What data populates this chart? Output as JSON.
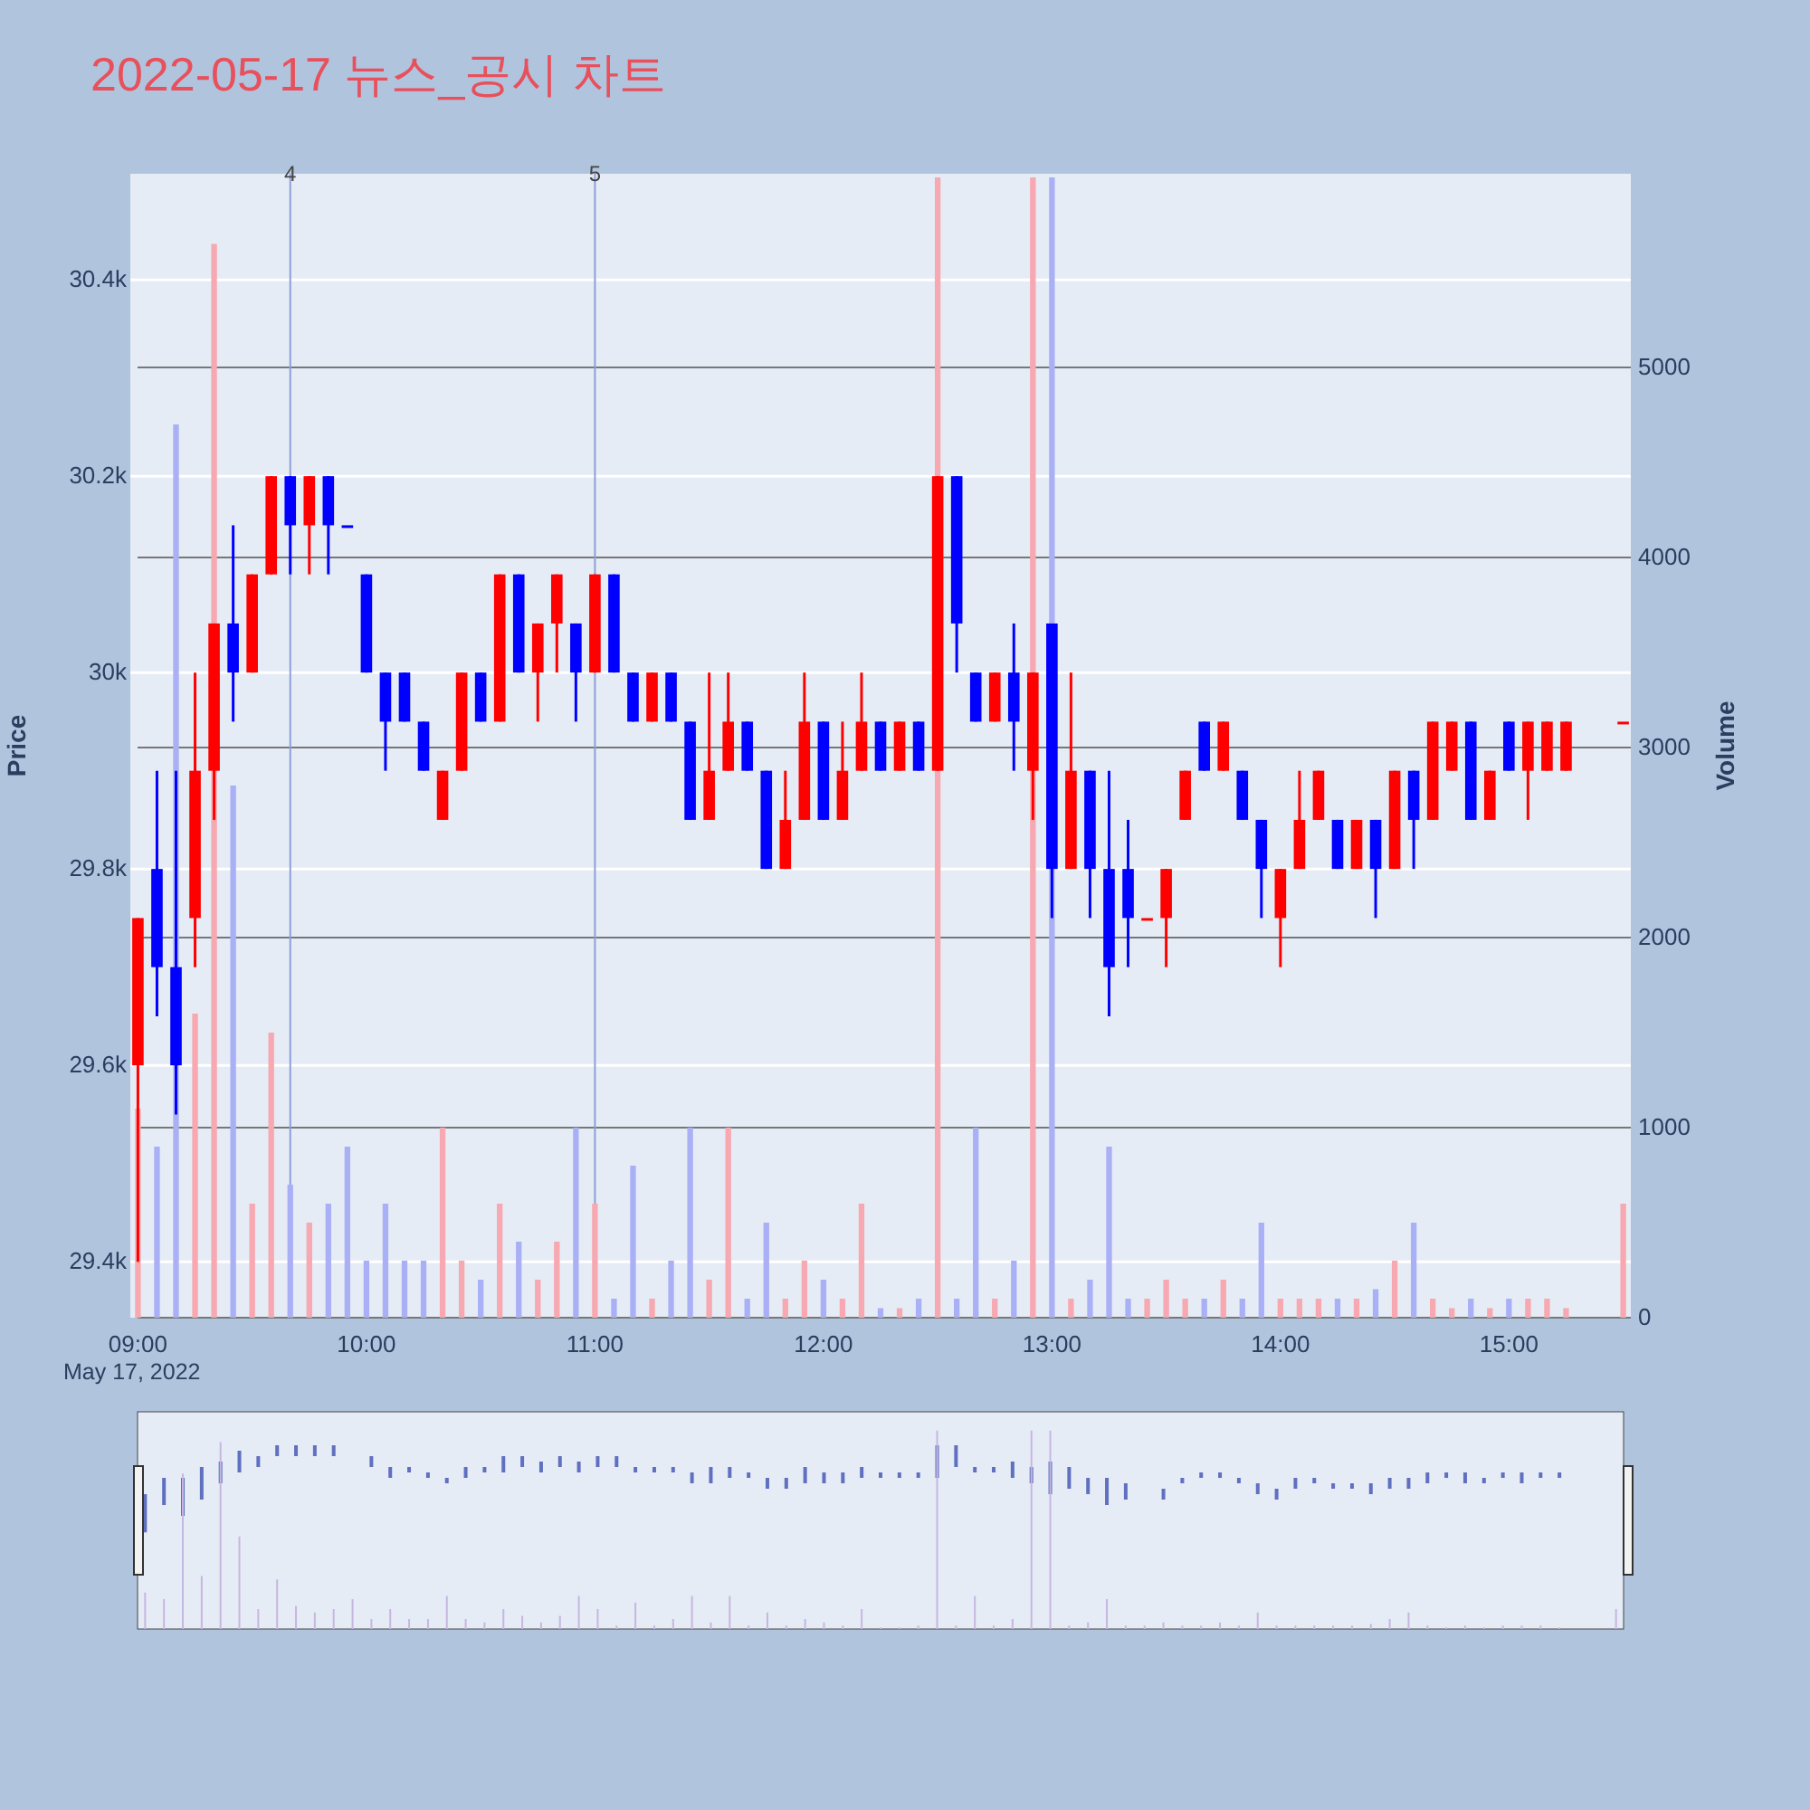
{
  "chart_data": {
    "type": "candlestick",
    "title": "2022-05-17 뉴스_공시 차트",
    "ylabel": "Price",
    "y2label": "Volume",
    "annotations": [
      "May 17, 2022"
    ],
    "xlim": [
      "2022-05-17T08:58",
      "2022-05-17T15:32"
    ],
    "xticks": [
      {
        "value": "2022-05-17T09:00",
        "label": "09:00"
      },
      {
        "value": "2022-05-17T10:00",
        "label": "10:00"
      },
      {
        "value": "2022-05-17T11:00",
        "label": "11:00"
      },
      {
        "value": "2022-05-17T12:00",
        "label": "12:00"
      },
      {
        "value": "2022-05-17T13:00",
        "label": "13:00"
      },
      {
        "value": "2022-05-17T14:00",
        "label": "14:00"
      },
      {
        "value": "2022-05-17T15:00",
        "label": "15:00"
      }
    ],
    "ylim": [
      29343,
      30508
    ],
    "yticks": [
      {
        "value": 29400,
        "label": "29.4k"
      },
      {
        "value": 29600,
        "label": "29.6k"
      },
      {
        "value": 29800,
        "label": "29.8k"
      },
      {
        "value": 30000,
        "label": "30k"
      },
      {
        "value": 30200,
        "label": "30.2k"
      },
      {
        "value": 30400,
        "label": "30.4k"
      }
    ],
    "y2lim": [
      0,
      6019
    ],
    "y2ticks": [
      0,
      1000,
      2000,
      3000,
      4000,
      5000
    ],
    "grid": true,
    "ref_lines": [
      {
        "axis": "x",
        "value": "2022-05-17T09:40",
        "label": "4",
        "color": "#8e9fd6"
      },
      {
        "axis": "x",
        "value": "2022-05-17T11:00",
        "label": "5",
        "color": "#8e9fd6"
      }
    ],
    "x": [
      "2022-05-17T09:00",
      "2022-05-17T09:05",
      "2022-05-17T09:10",
      "2022-05-17T09:15",
      "2022-05-17T09:20",
      "2022-05-17T09:25",
      "2022-05-17T09:30",
      "2022-05-17T09:35",
      "2022-05-17T09:40",
      "2022-05-17T09:45",
      "2022-05-17T09:50",
      "2022-05-17T09:55",
      "2022-05-17T10:00",
      "2022-05-17T10:05",
      "2022-05-17T10:10",
      "2022-05-17T10:15",
      "2022-05-17T10:20",
      "2022-05-17T10:25",
      "2022-05-17T10:30",
      "2022-05-17T10:35",
      "2022-05-17T10:40",
      "2022-05-17T10:45",
      "2022-05-17T10:50",
      "2022-05-17T10:55",
      "2022-05-17T11:00",
      "2022-05-17T11:05",
      "2022-05-17T11:10",
      "2022-05-17T11:15",
      "2022-05-17T11:20",
      "2022-05-17T11:25",
      "2022-05-17T11:30",
      "2022-05-17T11:35",
      "2022-05-17T11:40",
      "2022-05-17T11:45",
      "2022-05-17T11:50",
      "2022-05-17T11:55",
      "2022-05-17T12:00",
      "2022-05-17T12:05",
      "2022-05-17T12:10",
      "2022-05-17T12:15",
      "2022-05-17T12:20",
      "2022-05-17T12:25",
      "2022-05-17T12:30",
      "2022-05-17T12:35",
      "2022-05-17T12:40",
      "2022-05-17T12:45",
      "2022-05-17T12:50",
      "2022-05-17T12:55",
      "2022-05-17T13:00",
      "2022-05-17T13:05",
      "2022-05-17T13:10",
      "2022-05-17T13:15",
      "2022-05-17T13:20",
      "2022-05-17T13:25",
      "2022-05-17T13:30",
      "2022-05-17T13:35",
      "2022-05-17T13:40",
      "2022-05-17T13:45",
      "2022-05-17T13:50",
      "2022-05-17T13:55",
      "2022-05-17T14:00",
      "2022-05-17T14:05",
      "2022-05-17T14:10",
      "2022-05-17T14:15",
      "2022-05-17T14:20",
      "2022-05-17T14:25",
      "2022-05-17T14:30",
      "2022-05-17T14:35",
      "2022-05-17T14:40",
      "2022-05-17T14:45",
      "2022-05-17T14:50",
      "2022-05-17T14:55",
      "2022-05-17T15:00",
      "2022-05-17T15:05",
      "2022-05-17T15:10",
      "2022-05-17T15:15",
      "2022-05-17T15:30"
    ],
    "series": [
      {
        "colors": [
          "#ff0000",
          "#0000ff",
          "#0000ff",
          "#ff0000",
          "#ff0000",
          "#0000ff",
          "#ff0000",
          "#ff0000",
          "#0000ff",
          "#ff0000",
          "#0000ff",
          "#0000ff",
          "#0000ff",
          "#0000ff",
          "#0000ff",
          "#0000ff",
          "#ff0000",
          "#ff0000",
          "#0000ff",
          "#ff0000",
          "#0000ff",
          "#ff0000",
          "#ff0000",
          "#0000ff",
          "#ff0000",
          "#0000ff",
          "#0000ff",
          "#ff0000",
          "#0000ff",
          "#0000ff",
          "#ff0000",
          "#ff0000",
          "#0000ff",
          "#0000ff",
          "#ff0000",
          "#ff0000",
          "#0000ff",
          "#ff0000",
          "#ff0000",
          "#0000ff",
          "#ff0000",
          "#0000ff",
          "#ff0000",
          "#0000ff",
          "#0000ff",
          "#ff0000",
          "#0000ff",
          "#ff0000",
          "#0000ff",
          "#ff0000",
          "#0000ff",
          "#0000ff",
          "#0000ff",
          "#ff0000",
          "#ff0000",
          "#ff0000",
          "#0000ff",
          "#ff0000",
          "#0000ff",
          "#0000ff",
          "#ff0000",
          "#ff0000",
          "#ff0000",
          "#0000ff",
          "#ff0000",
          "#0000ff",
          "#ff0000",
          "#0000ff",
          "#ff0000",
          "#ff0000",
          "#0000ff",
          "#ff0000",
          "#0000ff",
          "#ff0000",
          "#ff0000",
          "#ff0000",
          "#ff0000"
        ],
        "ohlc": [
          [
            29600,
            29750,
            29400,
            29750
          ],
          [
            29800,
            29900,
            29650,
            29700
          ],
          [
            29700,
            29900,
            29550,
            29600
          ],
          [
            29750,
            30000,
            29700,
            29900
          ],
          [
            29900,
            30050,
            29850,
            30050
          ],
          [
            30050,
            30150,
            29950,
            30000
          ],
          [
            30000,
            30100,
            30000,
            30100
          ],
          [
            30100,
            30200,
            30100,
            30200
          ],
          [
            30200,
            30200,
            30100,
            30150
          ],
          [
            30150,
            30200,
            30100,
            30200
          ],
          [
            30200,
            30200,
            30100,
            30150
          ],
          [
            30150,
            30150,
            30150,
            30150
          ],
          [
            30100,
            30100,
            30000,
            30000
          ],
          [
            30000,
            30000,
            29900,
            29950
          ],
          [
            30000,
            30000,
            29950,
            29950
          ],
          [
            29950,
            29950,
            29900,
            29900
          ],
          [
            29850,
            29900,
            29850,
            29900
          ],
          [
            29900,
            30000,
            29900,
            30000
          ],
          [
            30000,
            30000,
            29950,
            29950
          ],
          [
            29950,
            30100,
            29950,
            30100
          ],
          [
            30100,
            30100,
            30000,
            30000
          ],
          [
            30000,
            30050,
            29950,
            30050
          ],
          [
            30050,
            30100,
            30000,
            30100
          ],
          [
            30050,
            30050,
            29950,
            30000
          ],
          [
            30000,
            30100,
            30000,
            30100
          ],
          [
            30100,
            30100,
            30000,
            30000
          ],
          [
            30000,
            30000,
            29950,
            29950
          ],
          [
            29950,
            30000,
            29950,
            30000
          ],
          [
            30000,
            30000,
            29950,
            29950
          ],
          [
            29950,
            29950,
            29850,
            29850
          ],
          [
            29850,
            30000,
            29850,
            29900
          ],
          [
            29900,
            30000,
            29900,
            29950
          ],
          [
            29950,
            29950,
            29900,
            29900
          ],
          [
            29900,
            29900,
            29800,
            29800
          ],
          [
            29800,
            29900,
            29800,
            29850
          ],
          [
            29850,
            30000,
            29850,
            29950
          ],
          [
            29950,
            29950,
            29850,
            29850
          ],
          [
            29850,
            29950,
            29850,
            29900
          ],
          [
            29900,
            30000,
            29900,
            29950
          ],
          [
            29950,
            29950,
            29900,
            29900
          ],
          [
            29900,
            29950,
            29900,
            29950
          ],
          [
            29950,
            29950,
            29900,
            29900
          ],
          [
            29900,
            30200,
            29900,
            30200
          ],
          [
            30200,
            30200,
            30000,
            30050
          ],
          [
            30000,
            30000,
            29950,
            29950
          ],
          [
            29950,
            30000,
            29950,
            30000
          ],
          [
            30000,
            30050,
            29900,
            29950
          ],
          [
            29900,
            30000,
            29850,
            30000
          ],
          [
            30050,
            30050,
            29750,
            29800
          ],
          [
            29800,
            30000,
            29800,
            29900
          ],
          [
            29900,
            29900,
            29750,
            29800
          ],
          [
            29800,
            29900,
            29650,
            29700
          ],
          [
            29800,
            29850,
            29700,
            29750
          ],
          [
            29750,
            29750,
            29750,
            29750
          ],
          [
            29750,
            29800,
            29700,
            29800
          ],
          [
            29850,
            29900,
            29850,
            29900
          ],
          [
            29950,
            29950,
            29900,
            29900
          ],
          [
            29900,
            29950,
            29900,
            29950
          ],
          [
            29900,
            29900,
            29850,
            29850
          ],
          [
            29850,
            29850,
            29750,
            29800
          ],
          [
            29750,
            29800,
            29700,
            29800
          ],
          [
            29800,
            29900,
            29800,
            29850
          ],
          [
            29850,
            29900,
            29850,
            29900
          ],
          [
            29850,
            29850,
            29800,
            29800
          ],
          [
            29800,
            29850,
            29800,
            29850
          ],
          [
            29850,
            29850,
            29750,
            29800
          ],
          [
            29800,
            29900,
            29800,
            29900
          ],
          [
            29900,
            29900,
            29800,
            29850
          ],
          [
            29850,
            29950,
            29850,
            29950
          ],
          [
            29900,
            29950,
            29900,
            29950
          ],
          [
            29950,
            29950,
            29850,
            29850
          ],
          [
            29850,
            29900,
            29850,
            29900
          ],
          [
            29950,
            29950,
            29900,
            29900
          ],
          [
            29900,
            29950,
            29850,
            29950
          ],
          [
            29900,
            29950,
            29900,
            29950
          ],
          [
            29900,
            29950,
            29900,
            29950
          ],
          [
            29950,
            29950,
            29950,
            29950
          ]
        ]
      },
      {
        "type": "bar",
        "axis": "y2",
        "colors": [
          "#f7a8b0",
          "#aab0f5",
          "#aab0f5",
          "#f7a8b0",
          "#f7a8b0",
          "#aab0f5",
          "#f7a8b0",
          "#f7a8b0",
          "#aab0f5",
          "#f7a8b0",
          "#aab0f5",
          "#aab0f5",
          "#aab0f5",
          "#aab0f5",
          "#aab0f5",
          "#aab0f5",
          "#f7a8b0",
          "#f7a8b0",
          "#aab0f5",
          "#f7a8b0",
          "#aab0f5",
          "#f7a8b0",
          "#f7a8b0",
          "#aab0f5",
          "#f7a8b0",
          "#aab0f5",
          "#aab0f5",
          "#f7a8b0",
          "#aab0f5",
          "#aab0f5",
          "#f7a8b0",
          "#f7a8b0",
          "#aab0f5",
          "#aab0f5",
          "#f7a8b0",
          "#f7a8b0",
          "#aab0f5",
          "#f7a8b0",
          "#f7a8b0",
          "#aab0f5",
          "#f7a8b0",
          "#aab0f5",
          "#f7a8b0",
          "#aab0f5",
          "#aab0f5",
          "#f7a8b0",
          "#aab0f5",
          "#f7a8b0",
          "#aab0f5",
          "#f7a8b0",
          "#aab0f5",
          "#aab0f5",
          "#aab0f5",
          "#f7a8b0",
          "#f7a8b0",
          "#f7a8b0",
          "#aab0f5",
          "#f7a8b0",
          "#aab0f5",
          "#aab0f5",
          "#f7a8b0",
          "#f7a8b0",
          "#f7a8b0",
          "#aab0f5",
          "#f7a8b0",
          "#aab0f5",
          "#f7a8b0",
          "#aab0f5",
          "#f7a8b0",
          "#f7a8b0",
          "#aab0f5",
          "#f7a8b0",
          "#aab0f5",
          "#f7a8b0",
          "#f7a8b0",
          "#f7a8b0",
          "#f7a8b0"
        ],
        "values": [
          1100,
          900,
          4700,
          1600,
          5650,
          2800,
          600,
          1500,
          700,
          500,
          600,
          900,
          300,
          600,
          300,
          300,
          1000,
          300,
          200,
          600,
          400,
          200,
          400,
          1000,
          600,
          100,
          800,
          100,
          300,
          1000,
          200,
          1000,
          100,
          500,
          100,
          300,
          200,
          100,
          600,
          50,
          50,
          100,
          6000,
          100,
          1000,
          100,
          300,
          6000,
          6000,
          100,
          200,
          900,
          100,
          100,
          200,
          100,
          100,
          200,
          100,
          500,
          100,
          100,
          100,
          100,
          100,
          150,
          300,
          500,
          100,
          50,
          100,
          50,
          100,
          100,
          100,
          50,
          600
        ]
      }
    ]
  }
}
